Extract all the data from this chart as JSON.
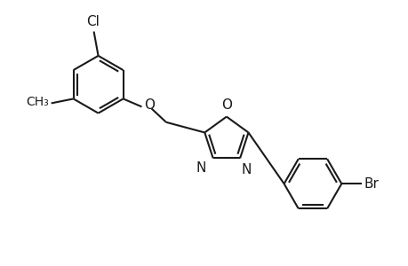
{
  "background_color": "#ffffff",
  "line_color": "#1a1a1a",
  "line_width": 1.5,
  "font_size": 10,
  "figsize": [
    4.6,
    3.0
  ],
  "dpi": 100,
  "xlim": [
    0,
    9.2
  ],
  "ylim": [
    0,
    6.0
  ]
}
